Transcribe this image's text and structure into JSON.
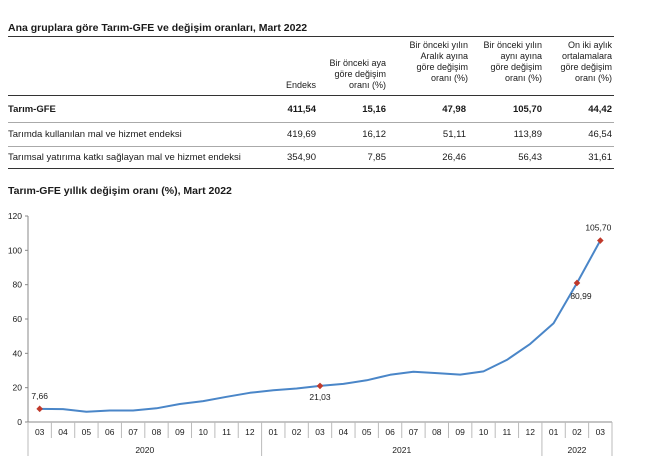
{
  "table": {
    "title": "Ana gruplara göre Tarım-GFE ve değişim oranları, Mart 2022",
    "headers": [
      "Endeks",
      "Bir önceki aya göre değişim oranı (%)",
      "Bir önceki yılın Aralık ayına göre değişim oranı (%)",
      "Bir önceki yılın aynı ayına göre değişim oranı (%)",
      "On iki aylık ortalamalara göre değişim oranı (%)"
    ],
    "header_lines": [
      [
        "Endeks"
      ],
      [
        "Bir önceki aya",
        "göre değişim",
        "oranı (%)"
      ],
      [
        "Bir önceki yılın",
        "Aralık ayına",
        "göre değişim",
        "oranı (%)"
      ],
      [
        "Bir önceki yılın",
        "aynı ayına",
        "göre değişim",
        "oranı (%)"
      ],
      [
        "On iki aylık",
        "ortalamalara",
        "göre değişim",
        "oranı (%)"
      ]
    ],
    "rows": [
      {
        "label": "Tarım-GFE",
        "values": [
          "411,54",
          "15,16",
          "47,98",
          "105,70",
          "44,42"
        ],
        "bold": true
      },
      {
        "label": "Tarımda kullanılan mal ve hizmet endeksi",
        "values": [
          "419,69",
          "16,12",
          "51,11",
          "113,89",
          "46,54"
        ],
        "bold": false
      },
      {
        "label": "Tarımsal yatırıma katkı sağlayan mal ve hizmet endeksi",
        "values": [
          "354,90",
          "7,85",
          "26,46",
          "56,43",
          "31,61"
        ],
        "bold": false
      }
    ]
  },
  "chart_data": {
    "type": "line",
    "title": "Tarım-GFE yıllık değişim oranı (%), Mart 2022",
    "xlabel": "",
    "ylabel": "",
    "ylim": [
      0,
      120
    ],
    "yticks": [
      0,
      20,
      40,
      60,
      80,
      100,
      120
    ],
    "categories": [
      "03",
      "04",
      "05",
      "06",
      "07",
      "08",
      "09",
      "10",
      "11",
      "12",
      "01",
      "02",
      "03",
      "04",
      "05",
      "06",
      "07",
      "08",
      "09",
      "10",
      "11",
      "12",
      "01",
      "02",
      "03"
    ],
    "years": [
      {
        "label": "2020",
        "start": 0,
        "end": 9
      },
      {
        "label": "2021",
        "start": 10,
        "end": 21
      },
      {
        "label": "2022",
        "start": 22,
        "end": 24
      }
    ],
    "series": [
      {
        "name": "Tarım-GFE yıllık değişim oranı",
        "values": [
          7.66,
          7.5,
          6.0,
          6.7,
          6.7,
          8.0,
          10.5,
          12.2,
          14.7,
          17.0,
          18.5,
          19.5,
          21.03,
          22.2,
          24.3,
          27.5,
          29.3,
          28.5,
          27.6,
          29.5,
          36.2,
          45.5,
          57.5,
          80.99,
          105.7
        ]
      }
    ],
    "markers": [
      {
        "index": 0,
        "label": "7,66"
      },
      {
        "index": 12,
        "label": "21,03"
      },
      {
        "index": 23,
        "label": "80,99"
      },
      {
        "index": 24,
        "label": "105,70"
      }
    ],
    "line_color": "#4a86c8",
    "marker_color": "#c0392b"
  }
}
